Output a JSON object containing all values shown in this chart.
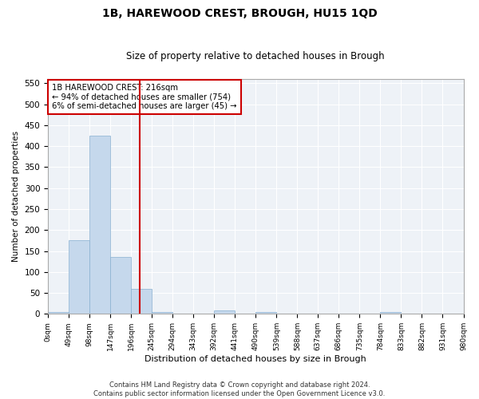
{
  "title1": "1B, HAREWOOD CREST, BROUGH, HU15 1QD",
  "title2": "Size of property relative to detached houses in Brough",
  "xlabel": "Distribution of detached houses by size in Brough",
  "ylabel": "Number of detached properties",
  "bar_color": "#c5d8ec",
  "bar_edge_color": "#88b0d0",
  "property_line_x": 216,
  "property_line_color": "#cc0000",
  "annotation_title": "1B HAREWOOD CREST: 216sqm",
  "annotation_line1": "← 94% of detached houses are smaller (754)",
  "annotation_line2": "6% of semi-detached houses are larger (45) →",
  "annotation_box_color": "#cc0000",
  "bin_edges": [
    0,
    49,
    98,
    147,
    196,
    245,
    294,
    343,
    392,
    441,
    490,
    539,
    588,
    637,
    686,
    735,
    784,
    833,
    882,
    931,
    980
  ],
  "bin_counts": [
    5,
    175,
    425,
    135,
    60,
    5,
    0,
    0,
    8,
    0,
    4,
    0,
    0,
    0,
    0,
    0,
    4,
    0,
    0,
    0
  ],
  "ylim": [
    0,
    560
  ],
  "yticks": [
    0,
    50,
    100,
    150,
    200,
    250,
    300,
    350,
    400,
    450,
    500,
    550
  ],
  "background_color": "#eef2f7",
  "footer1": "Contains HM Land Registry data © Crown copyright and database right 2024.",
  "footer2": "Contains public sector information licensed under the Open Government Licence v3.0."
}
